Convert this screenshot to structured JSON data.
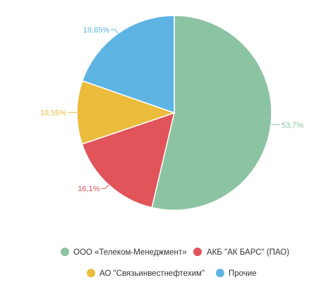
{
  "chart_data": {
    "type": "pie",
    "slices": [
      {
        "label": "ООО «Телеком-Менеджмент»",
        "value": 53.7,
        "value_text": "53,7%",
        "color": "#8cc3a2"
      },
      {
        "label": "АКБ \"АК БАРС\" (ПАО)",
        "value": 16.1,
        "value_text": "16,1%",
        "color": "#e0545a"
      },
      {
        "label": "АО \"Связьинвестнефтехим\"",
        "value": 10.55,
        "value_text": "10,55%",
        "color": "#ebbb3c"
      },
      {
        "label": "Прочие",
        "value": 19.65,
        "value_text": "19,65%",
        "color": "#5db4e3"
      }
    ],
    "legend_position": "bottom",
    "start_angle": "top",
    "direction": "clockwise"
  }
}
